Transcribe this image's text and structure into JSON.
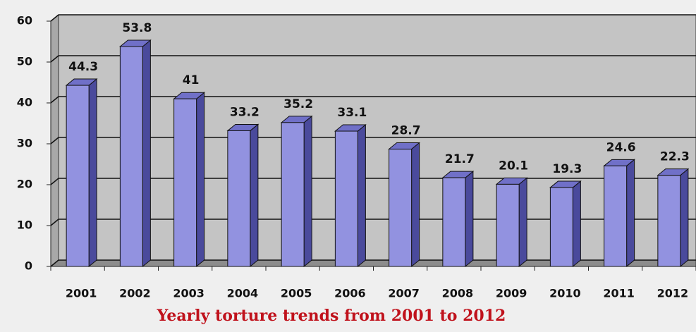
{
  "chart_data": {
    "type": "bar3d",
    "title": "Yearly torture trends from 2001 to 2012",
    "categories": [
      "2001",
      "2002",
      "2003",
      "2004",
      "2005",
      "2006",
      "2007",
      "2008",
      "2009",
      "2010",
      "2011",
      "2012"
    ],
    "values": [
      44.3,
      53.8,
      41,
      33.2,
      35.2,
      33.1,
      28.7,
      21.7,
      20.1,
      19.3,
      24.6,
      22.3
    ],
    "color": "#9292e0",
    "ylim": [
      0,
      60
    ],
    "yticks": [
      0,
      10,
      20,
      30,
      40,
      50,
      60
    ],
    "grid": true
  }
}
